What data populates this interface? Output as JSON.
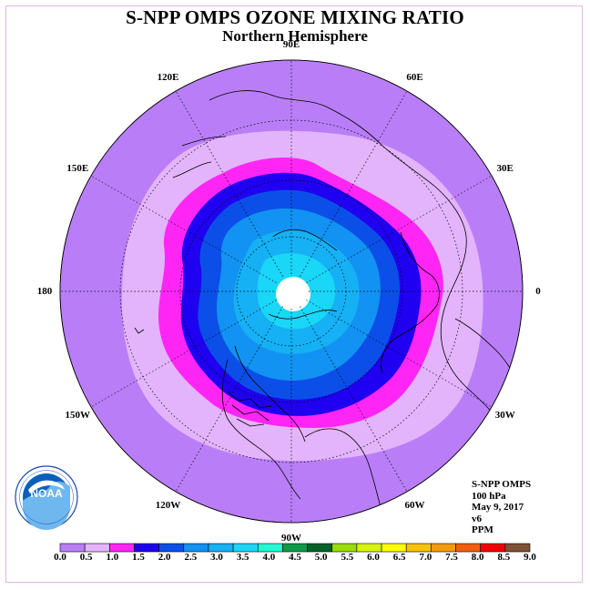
{
  "title": "S-NPP OMPS OZONE MIXING RATIO",
  "subtitle": "Northern Hemisphere",
  "info_lines": [
    "S-NPP OMPS",
    "100 hPa",
    "May 9, 2017",
    "v6",
    "PPM"
  ],
  "logo": {
    "text": "NOAA",
    "ring_text": "NATIONAL OCEANIC AND ATMOSPHERIC ADMINISTRATION · U.S. DEPARTMENT OF COMMERCE"
  },
  "longitude_labels": [
    {
      "text": "90E",
      "lon": 90
    },
    {
      "text": "60E",
      "lon": 60
    },
    {
      "text": "30E",
      "lon": 30
    },
    {
      "text": "0",
      "lon": 0
    },
    {
      "text": "30W",
      "lon": -30
    },
    {
      "text": "60W",
      "lon": -60
    },
    {
      "text": "90W",
      "lon": -90
    },
    {
      "text": "120W",
      "lon": -120
    },
    {
      "text": "150W",
      "lon": -150
    },
    {
      "text": "180",
      "lon": 180
    },
    {
      "text": "150E",
      "lon": 150
    },
    {
      "text": "120E",
      "lon": 120
    }
  ],
  "colorbar": {
    "ticks": [
      "0.0",
      "0.5",
      "1.0",
      "1.5",
      "2.0",
      "2.5",
      "3.0",
      "3.5",
      "4.0",
      "4.5",
      "5.0",
      "5.5",
      "6.0",
      "6.5",
      "7.0",
      "7.5",
      "8.0",
      "8.5",
      "9.0"
    ],
    "colors": [
      "#b97ef7",
      "#e3b4fb",
      "#ff26f5",
      "#1f00f0",
      "#0b4fe8",
      "#1292f2",
      "#16b0f4",
      "#1ad6f7",
      "#22fad2",
      "#0e9a48",
      "#06602a",
      "#98dc08",
      "#d6f508",
      "#fdfd04",
      "#f8c205",
      "#f49a0b",
      "#f25e0e",
      "#f40005",
      "#7d5133"
    ]
  },
  "contour_colors": {
    "0.0": "#b97ef7",
    "0.5": "#e3b4fb",
    "1.0": "#ff26f5",
    "1.5": "#1f00f0",
    "2.0": "#0b4fe8",
    "2.5": "#1292f2",
    "3.0": "#16b0f4",
    "3.5": "#1ad6f7",
    "missing": "#ffffff"
  }
}
